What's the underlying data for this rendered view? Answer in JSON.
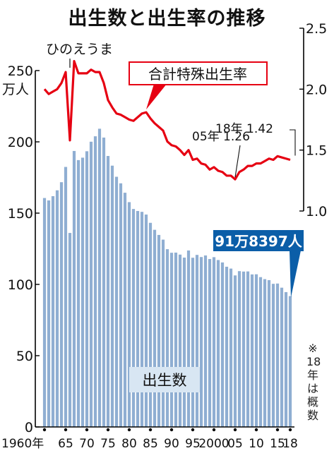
{
  "title": "出生数と出生率の推移",
  "note": [
    "※",
    "18",
    "年",
    "は",
    "概",
    "数"
  ],
  "chart_data": {
    "type": "bar+line",
    "title": "出生数と出生率の推移",
    "left_axis": {
      "unit": "万人",
      "ticks": [
        0,
        50,
        100,
        150,
        200,
        250
      ],
      "ylim": [
        0,
        250
      ]
    },
    "right_axis": {
      "ticks": [
        "1.0",
        "1.5",
        "2.0",
        "2.5"
      ],
      "ylim": [
        1.0,
        2.5
      ]
    },
    "x_tick_labels": [
      "1960年",
      "65",
      "70",
      "75",
      "80",
      "85",
      "90",
      "95",
      "2000",
      "05",
      "10",
      "15",
      "18"
    ],
    "years": [
      1960,
      1961,
      1962,
      1963,
      1964,
      1965,
      1966,
      1967,
      1968,
      1969,
      1970,
      1971,
      1972,
      1973,
      1974,
      1975,
      1976,
      1977,
      1978,
      1979,
      1980,
      1981,
      1982,
      1983,
      1984,
      1985,
      1986,
      1987,
      1988,
      1989,
      1990,
      1991,
      1992,
      1993,
      1994,
      1995,
      1996,
      1997,
      1998,
      1999,
      2000,
      2001,
      2002,
      2003,
      2004,
      2005,
      2006,
      2007,
      2008,
      2009,
      2010,
      2011,
      2012,
      2013,
      2014,
      2015,
      2016,
      2017,
      2018
    ],
    "series": [
      {
        "name": "出生数",
        "type": "bar",
        "color": "#8faed2",
        "values": [
          160.6,
          158.9,
          161.9,
          166.0,
          171.7,
          182.4,
          136.1,
          193.6,
          187.2,
          188.9,
          193.4,
          200.1,
          203.9,
          209.2,
          203.0,
          190.1,
          183.3,
          175.5,
          170.9,
          164.3,
          157.7,
          152.9,
          151.5,
          150.9,
          149.0,
          143.2,
          138.3,
          134.7,
          131.4,
          124.7,
          122.2,
          122.3,
          120.9,
          118.8,
          123.8,
          118.7,
          120.7,
          119.2,
          120.3,
          117.8,
          119.1,
          117.1,
          115.4,
          112.4,
          111.1,
          106.3,
          109.3,
          109.0,
          109.1,
          107.0,
          107.1,
          105.1,
          103.7,
          103.0,
          100.4,
          100.6,
          97.7,
          94.6,
          91.8
        ]
      },
      {
        "name": "合計特殊出生率",
        "type": "line",
        "color": "#e60012",
        "values": [
          2.0,
          1.96,
          1.98,
          2.0,
          2.05,
          2.14,
          1.58,
          2.23,
          2.13,
          2.13,
          2.13,
          2.16,
          2.14,
          2.14,
          2.05,
          1.91,
          1.85,
          1.8,
          1.79,
          1.77,
          1.75,
          1.74,
          1.77,
          1.8,
          1.81,
          1.76,
          1.72,
          1.69,
          1.66,
          1.57,
          1.54,
          1.53,
          1.5,
          1.46,
          1.5,
          1.42,
          1.43,
          1.39,
          1.38,
          1.34,
          1.36,
          1.33,
          1.32,
          1.29,
          1.29,
          1.26,
          1.32,
          1.34,
          1.37,
          1.37,
          1.39,
          1.39,
          1.41,
          1.43,
          1.42,
          1.45,
          1.44,
          1.43,
          1.42
        ]
      }
    ],
    "annotations": {
      "hinoeuma": "ひのえうま",
      "rate_label": "合計特殊出生率",
      "min_label": "05年 1.26",
      "latest_rate_label": "18年 1.42",
      "latest_births_label": "91万8397人",
      "bar_label": "出生数"
    },
    "colors": {
      "bar": "#8faed2",
      "line": "#e60012",
      "callout": "#0b5ea8",
      "label_box": "#d8e6f3"
    },
    "grid": false,
    "legend": "none"
  }
}
